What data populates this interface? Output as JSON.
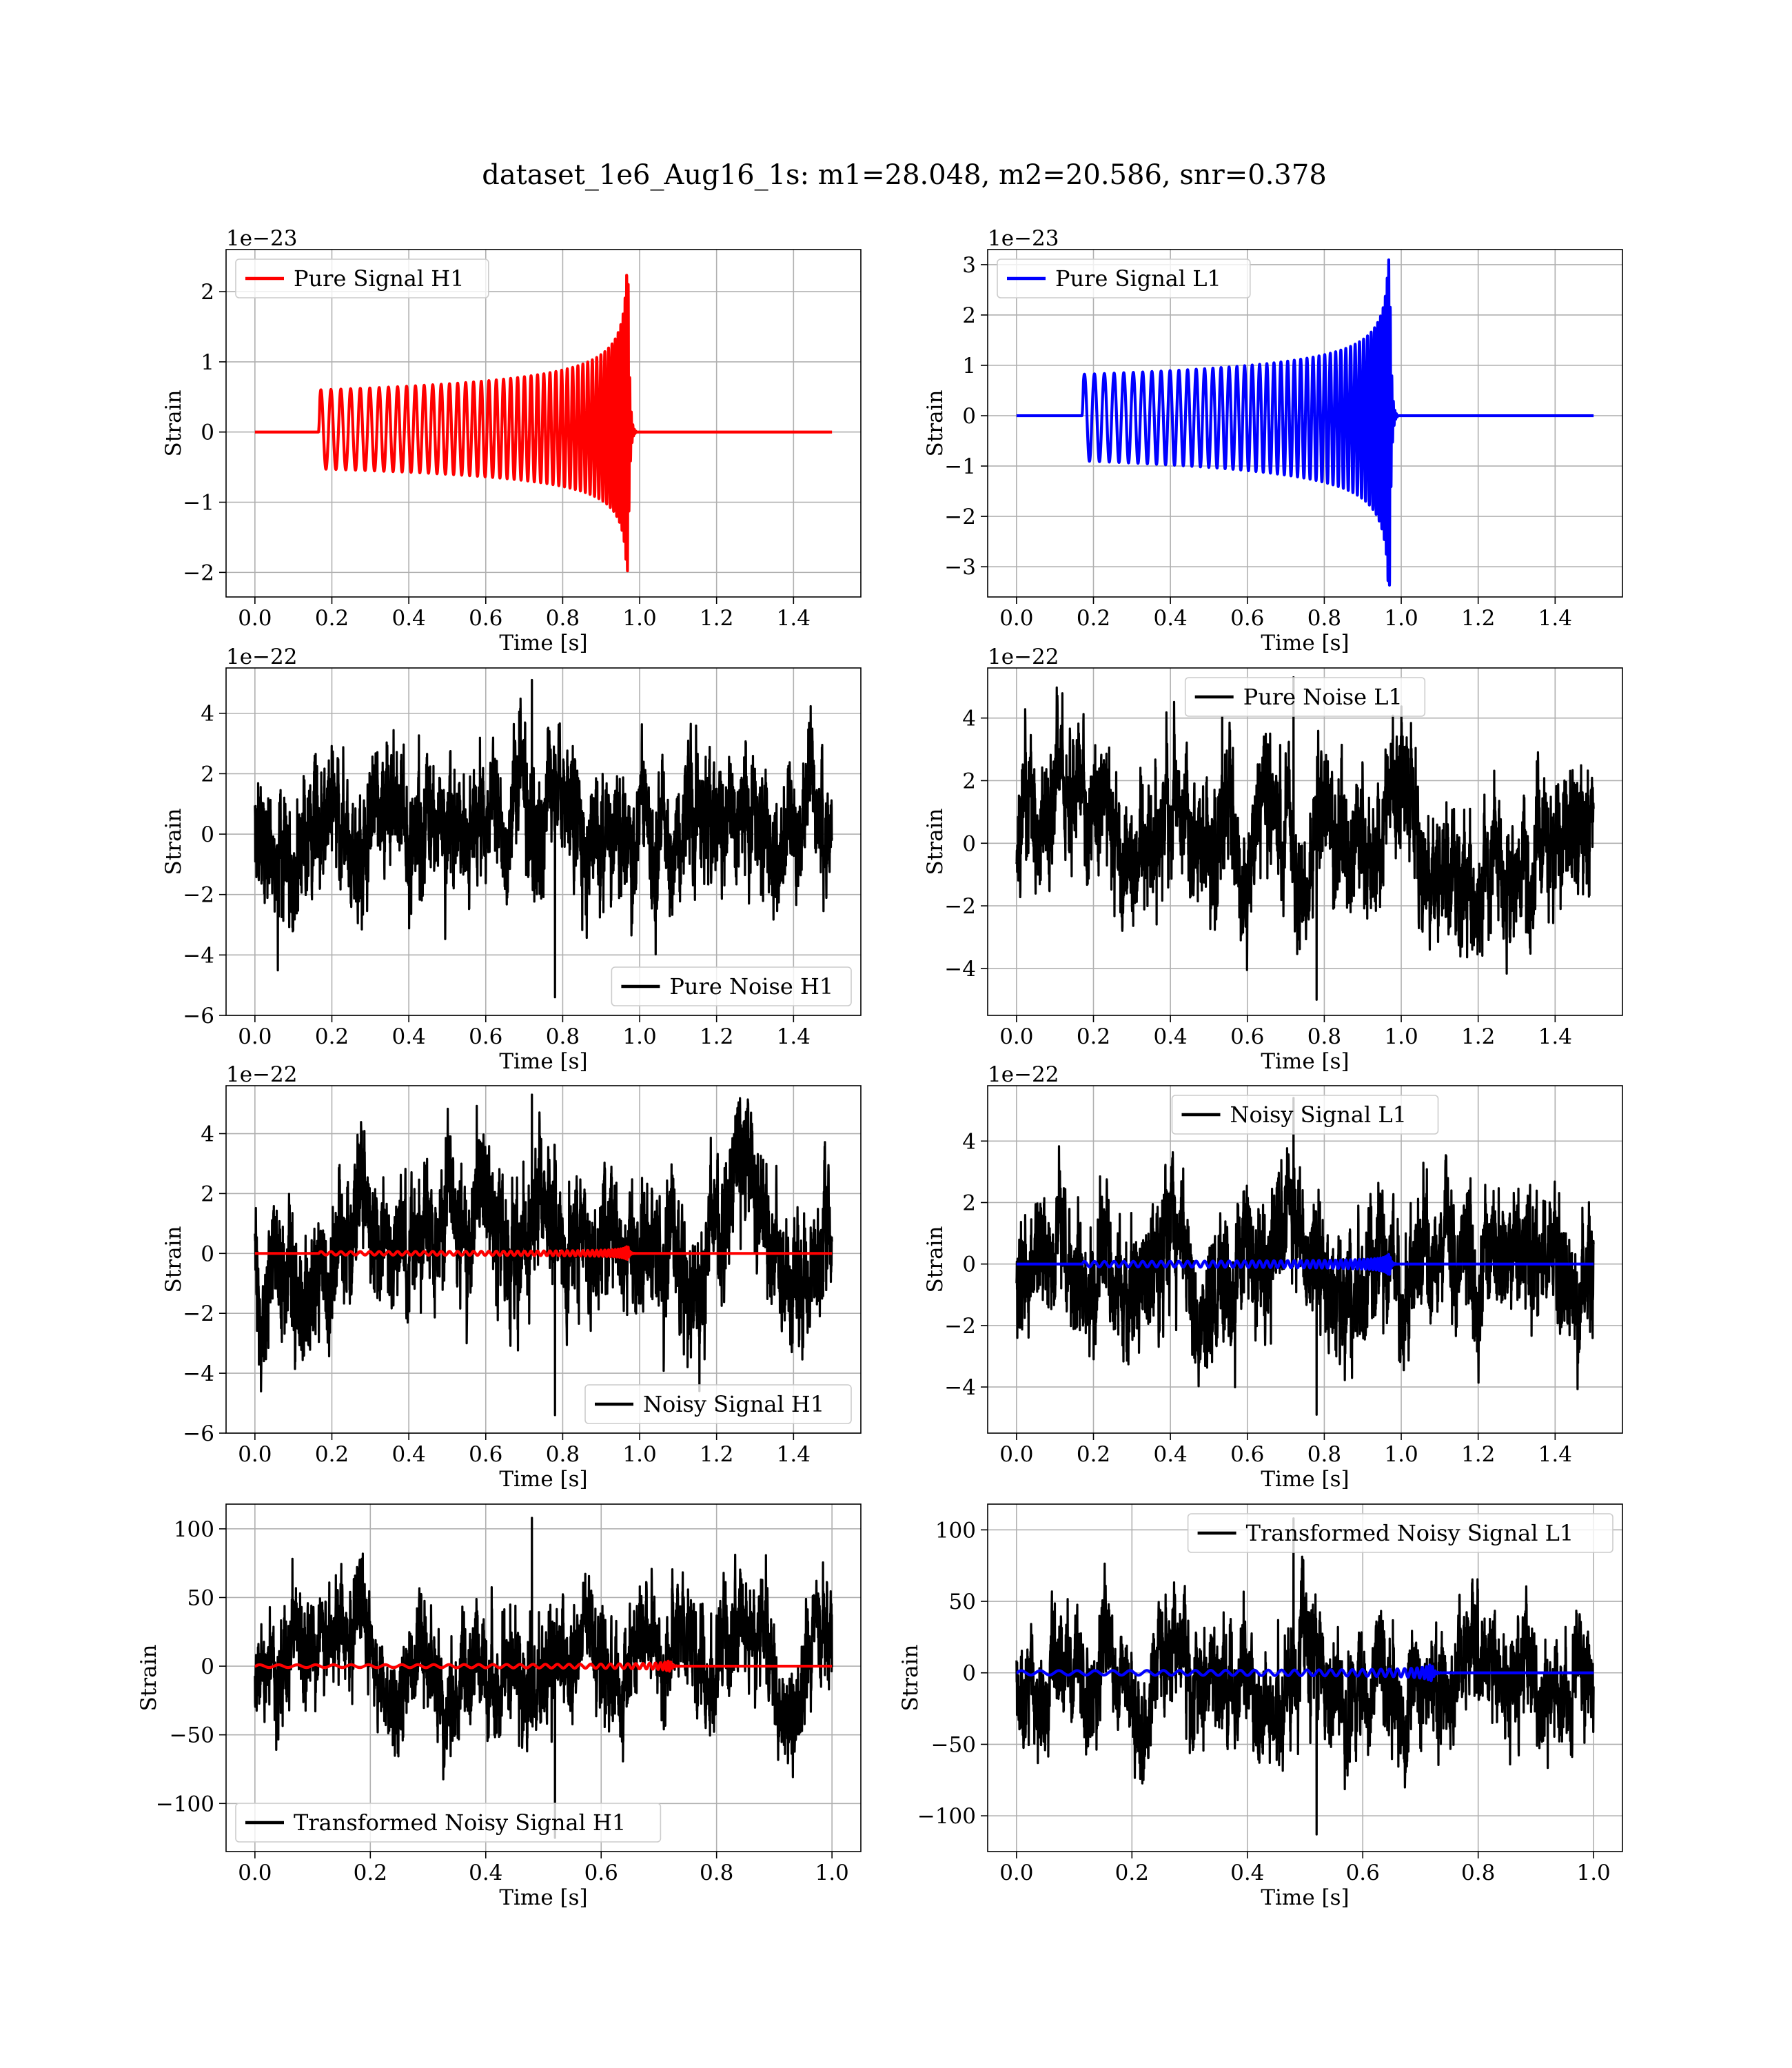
{
  "figure": {
    "title": "dataset_1e6_Aug16_1s: m1=28.048, m2=20.586, snr=0.378"
  },
  "chart_data": [
    {
      "id": "pure-signal-h1",
      "type": "line",
      "title": "",
      "xlabel": "Time [s]",
      "ylabel": "Strain",
      "offset_label": "1e−23",
      "xlim": [
        -0.075,
        1.575
      ],
      "ylim": [
        -2.35,
        2.6
      ],
      "xticks": [
        0.0,
        0.2,
        0.4,
        0.6,
        0.8,
        1.0,
        1.2,
        1.4
      ],
      "xtick_labels": [
        "0.0",
        "0.2",
        "0.4",
        "0.6",
        "0.8",
        "1.0",
        "1.2",
        "1.4"
      ],
      "yticks": [
        -2,
        -1,
        0,
        1,
        2
      ],
      "ytick_labels": [
        "−2",
        "−1",
        "0",
        "1",
        "2"
      ],
      "grid": true,
      "legend": "upper-left",
      "series": [
        {
          "name": "Pure Signal H1",
          "color": "#ff0000",
          "kind": "chirp",
          "duration": 1.5,
          "start": 0.165,
          "merger": 0.97,
          "amp_initial": 0.6,
          "amp_peak_pos": 2.45,
          "amp_peak_neg": -2.15,
          "freq_initial": 38,
          "freq_final": 250
        }
      ]
    },
    {
      "id": "pure-signal-l1",
      "type": "line",
      "title": "",
      "xlabel": "Time [s]",
      "ylabel": "Strain",
      "offset_label": "1e−23",
      "xlim": [
        -0.075,
        1.575
      ],
      "ylim": [
        -3.6,
        3.3
      ],
      "xticks": [
        0.0,
        0.2,
        0.4,
        0.6,
        0.8,
        1.0,
        1.2,
        1.4
      ],
      "xtick_labels": [
        "0.0",
        "0.2",
        "0.4",
        "0.6",
        "0.8",
        "1.0",
        "1.2",
        "1.4"
      ],
      "yticks": [
        -3,
        -2,
        -1,
        0,
        1,
        2,
        3
      ],
      "ytick_labels": [
        "−3",
        "−2",
        "−1",
        "0",
        "1",
        "2",
        "3"
      ],
      "grid": true,
      "legend": "upper-left",
      "series": [
        {
          "name": "Pure Signal L1",
          "color": "#0000ff",
          "kind": "chirp",
          "duration": 1.5,
          "start": 0.17,
          "merger": 0.97,
          "amp_initial": 0.9,
          "amp_peak_pos": 3.2,
          "amp_peak_neg": -3.5,
          "freq_initial": 38,
          "freq_final": 250
        }
      ]
    },
    {
      "id": "pure-noise-h1",
      "type": "line",
      "title": "",
      "xlabel": "Time [s]",
      "ylabel": "Strain",
      "offset_label": "1e−22",
      "xlim": [
        -0.075,
        1.575
      ],
      "ylim": [
        -6.0,
        5.5
      ],
      "xticks": [
        0.0,
        0.2,
        0.4,
        0.6,
        0.8,
        1.0,
        1.2,
        1.4
      ],
      "xtick_labels": [
        "0.0",
        "0.2",
        "0.4",
        "0.6",
        "0.8",
        "1.0",
        "1.2",
        "1.4"
      ],
      "yticks": [
        -6,
        -4,
        -2,
        0,
        2,
        4
      ],
      "ytick_labels": [
        "−6",
        "−4",
        "−2",
        "0",
        "2",
        "4"
      ],
      "grid": true,
      "legend": "lower-right",
      "series": [
        {
          "name": "Pure Noise H1",
          "color": "#000000",
          "kind": "noise",
          "duration": 1.5,
          "min": -5.4,
          "max": 5.1,
          "std": 1.5,
          "seed": 11
        }
      ]
    },
    {
      "id": "pure-noise-l1",
      "type": "line",
      "title": "",
      "xlabel": "Time [s]",
      "ylabel": "Strain",
      "offset_label": "1e−22",
      "xlim": [
        -0.075,
        1.575
      ],
      "ylim": [
        -5.5,
        5.6
      ],
      "xticks": [
        0.0,
        0.2,
        0.4,
        0.6,
        0.8,
        1.0,
        1.2,
        1.4
      ],
      "xtick_labels": [
        "0.0",
        "0.2",
        "0.4",
        "0.6",
        "0.8",
        "1.0",
        "1.2",
        "1.4"
      ],
      "yticks": [
        -4,
        -2,
        0,
        2,
        4
      ],
      "ytick_labels": [
        "−4",
        "−2",
        "0",
        "2",
        "4"
      ],
      "grid": true,
      "legend": "upper-center",
      "series": [
        {
          "name": "Pure Noise L1",
          "color": "#000000",
          "kind": "noise",
          "duration": 1.5,
          "min": -5.0,
          "max": 5.3,
          "std": 1.5,
          "seed": 23
        }
      ]
    },
    {
      "id": "noisy-signal-h1",
      "type": "line",
      "title": "",
      "xlabel": "Time [s]",
      "ylabel": "Strain",
      "offset_label": "1e−22",
      "xlim": [
        -0.075,
        1.575
      ],
      "ylim": [
        -6.0,
        5.6
      ],
      "xticks": [
        0.0,
        0.2,
        0.4,
        0.6,
        0.8,
        1.0,
        1.2,
        1.4
      ],
      "xtick_labels": [
        "0.0",
        "0.2",
        "0.4",
        "0.6",
        "0.8",
        "1.0",
        "1.2",
        "1.4"
      ],
      "yticks": [
        -6,
        -4,
        -2,
        0,
        2,
        4
      ],
      "ytick_labels": [
        "−6",
        "−4",
        "−2",
        "0",
        "2",
        "4"
      ],
      "grid": true,
      "legend": "lower-right",
      "series": [
        {
          "name": "Noisy Signal H1",
          "color": "#000000",
          "kind": "noise",
          "duration": 1.5,
          "min": -5.4,
          "max": 5.3,
          "std": 1.5,
          "seed": 37
        },
        {
          "color": "#ff0000",
          "kind": "chirp",
          "duration": 1.5,
          "start": 0.165,
          "merger": 0.97,
          "amp_initial": 0.06,
          "amp_peak_pos": 0.25,
          "amp_peak_neg": -0.22,
          "freq_initial": 38,
          "freq_final": 250
        }
      ]
    },
    {
      "id": "noisy-signal-l1",
      "type": "line",
      "title": "",
      "xlabel": "Time [s]",
      "ylabel": "Strain",
      "offset_label": "1e−22",
      "xlim": [
        -0.075,
        1.575
      ],
      "ylim": [
        -5.5,
        5.8
      ],
      "xticks": [
        0.0,
        0.2,
        0.4,
        0.6,
        0.8,
        1.0,
        1.2,
        1.4
      ],
      "xtick_labels": [
        "0.0",
        "0.2",
        "0.4",
        "0.6",
        "0.8",
        "1.0",
        "1.2",
        "1.4"
      ],
      "yticks": [
        -4,
        -2,
        0,
        2,
        4
      ],
      "ytick_labels": [
        "−4",
        "−2",
        "0",
        "2",
        "4"
      ],
      "grid": true,
      "legend": "upper-center",
      "series": [
        {
          "name": "Noisy Signal L1",
          "color": "#000000",
          "kind": "noise",
          "duration": 1.5,
          "min": -4.9,
          "max": 5.4,
          "std": 1.5,
          "seed": 53
        },
        {
          "color": "#0000ff",
          "kind": "chirp",
          "duration": 1.5,
          "start": 0.17,
          "merger": 0.97,
          "amp_initial": 0.09,
          "amp_peak_pos": 0.32,
          "amp_peak_neg": -0.35,
          "freq_initial": 38,
          "freq_final": 250
        }
      ]
    },
    {
      "id": "transformed-noisy-signal-h1",
      "type": "line",
      "title": "",
      "xlabel": "Time [s]",
      "ylabel": "Strain",
      "offset_label": "",
      "xlim": [
        -0.05,
        1.05
      ],
      "ylim": [
        -135,
        118
      ],
      "xticks": [
        0.0,
        0.2,
        0.4,
        0.6,
        0.8,
        1.0
      ],
      "xtick_labels": [
        "0.0",
        "0.2",
        "0.4",
        "0.6",
        "0.8",
        "1.0"
      ],
      "yticks": [
        -100,
        -50,
        0,
        50,
        100
      ],
      "ytick_labels": [
        "−100",
        "−50",
        "0",
        "50",
        "100"
      ],
      "grid": true,
      "legend": "lower-left",
      "series": [
        {
          "name": "Transformed Noisy Signal H1",
          "color": "#000000",
          "kind": "noise",
          "duration": 1.0,
          "min": -125,
          "max": 108,
          "std": 28,
          "seed": 71
        },
        {
          "color": "#ff0000",
          "kind": "chirp",
          "duration": 1.0,
          "start": 0.0,
          "merger": 0.72,
          "amp_initial": 1.0,
          "amp_peak_pos": 5,
          "amp_peak_neg": -5,
          "freq_initial": 30,
          "freq_final": 250
        }
      ]
    },
    {
      "id": "transformed-noisy-signal-l1",
      "type": "line",
      "title": "",
      "xlabel": "Time [s]",
      "ylabel": "Strain",
      "offset_label": "",
      "xlim": [
        -0.05,
        1.05
      ],
      "ylim": [
        -125,
        118
      ],
      "xticks": [
        0.0,
        0.2,
        0.4,
        0.6,
        0.8,
        1.0
      ],
      "xtick_labels": [
        "0.0",
        "0.2",
        "0.4",
        "0.6",
        "0.8",
        "1.0"
      ],
      "yticks": [
        -100,
        -50,
        0,
        50,
        100
      ],
      "ytick_labels": [
        "−100",
        "−50",
        "0",
        "50",
        "100"
      ],
      "grid": true,
      "legend": "upper-right",
      "series": [
        {
          "name": "Transformed Noisy Signal L1",
          "color": "#000000",
          "kind": "noise",
          "duration": 1.0,
          "min": -113,
          "max": 108,
          "std": 28,
          "seed": 89
        },
        {
          "color": "#0000ff",
          "kind": "chirp",
          "duration": 1.0,
          "start": 0.0,
          "merger": 0.72,
          "amp_initial": 1.5,
          "amp_peak_pos": 8,
          "amp_peak_neg": -8,
          "freq_initial": 30,
          "freq_final": 250
        }
      ]
    }
  ]
}
